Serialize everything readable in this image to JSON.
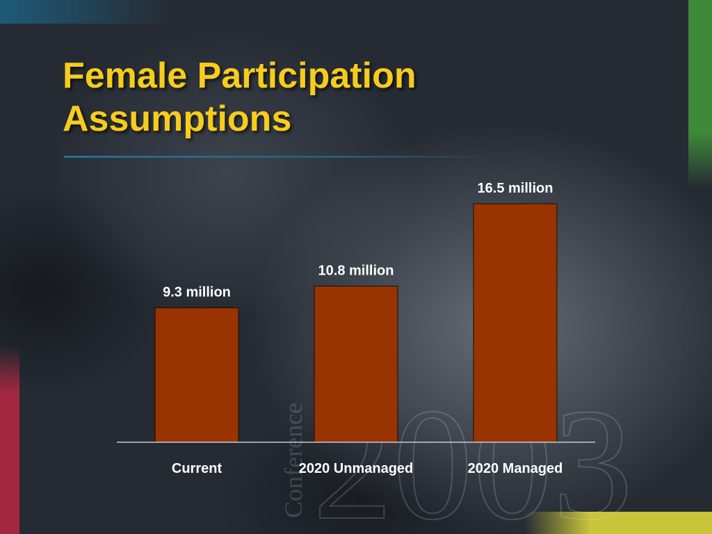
{
  "slide": {
    "title_line1": "Female Participation",
    "title_line2": "Assumptions"
  },
  "watermark": {
    "word": "Conference",
    "year": "2003"
  },
  "colors": {
    "title": "#f6cc1d",
    "bar": "#993300",
    "background": "#262b33",
    "accent_blue": "#1e5a78",
    "accent_green": "#3f8a3a",
    "accent_red": "#a3283f",
    "accent_yellow": "#c9c43a"
  },
  "chart_data": {
    "type": "bar",
    "categories": [
      "Current",
      "2020 Unmanaged",
      "2020 Managed"
    ],
    "values": [
      9.3,
      10.8,
      16.5
    ],
    "value_labels": [
      "9.3 million",
      "10.8 million",
      "16.5 million"
    ],
    "unit": "million",
    "ylim": [
      0,
      18
    ],
    "grid": false,
    "legend": "none",
    "title": "",
    "xlabel": "",
    "ylabel": ""
  }
}
